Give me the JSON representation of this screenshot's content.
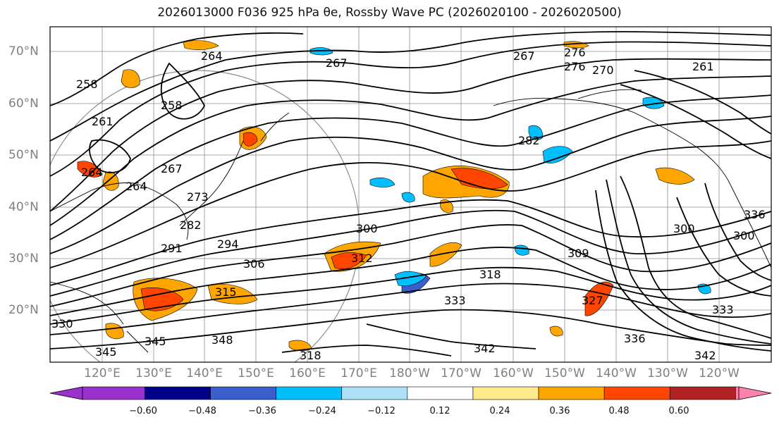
{
  "map": {
    "title": "2026013000 F036 925 hPa θe, Rossby Wave PC (2026020100 - 2026020500)",
    "lat_labels": [
      "70°N",
      "60°N",
      "50°N",
      "40°N",
      "30°N",
      "20°N"
    ],
    "lon_labels": [
      "120°E",
      "130°E",
      "140°E",
      "150°E",
      "160°E",
      "170°E",
      "180°W",
      "170°W",
      "160°W",
      "150°W",
      "140°W",
      "130°W",
      "120°W"
    ],
    "contour_labels": [
      "264",
      "258",
      "258",
      "261",
      "264",
      "267",
      "273",
      "282",
      "291",
      "294",
      "300",
      "306",
      "312",
      "315",
      "318",
      "309",
      "300",
      "330",
      "336",
      "345",
      "348",
      "342",
      "333",
      "327",
      "282",
      "276",
      "276",
      "270",
      "267",
      "261",
      "267",
      "264",
      "333",
      "336",
      "342",
      "345",
      "318",
      "300"
    ],
    "colors": {
      "contour": "#000000",
      "grid": "#8c8c8c",
      "coast": "#000000"
    }
  },
  "colorbar": {
    "ticks": [
      "−0.60",
      "−0.48",
      "−0.36",
      "−0.24",
      "−0.12",
      "0.12",
      "0.24",
      "0.36",
      "0.48",
      "0.60"
    ],
    "bins": [
      {
        "color": "#9932CC"
      },
      {
        "color": "#00008B"
      },
      {
        "color": "#3A5FCD"
      },
      {
        "color": "#00BFFF"
      },
      {
        "color": "#ADE1F8"
      },
      {
        "color": "#FFFFFF"
      },
      {
        "color": "#FFE98A"
      },
      {
        "color": "#FFA500"
      },
      {
        "color": "#FF4500"
      },
      {
        "color": "#B22222"
      },
      {
        "color": "#FF82AB"
      }
    ]
  }
}
